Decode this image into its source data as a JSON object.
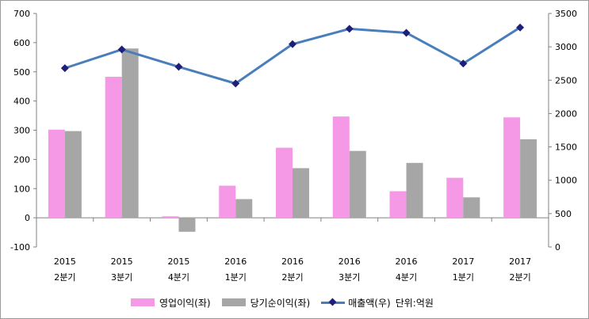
{
  "chart_data": {
    "type": "bar",
    "categories": [
      {
        "year": "2015",
        "quarter": "2분기"
      },
      {
        "year": "2015",
        "quarter": "3분기"
      },
      {
        "year": "2015",
        "quarter": "4분기"
      },
      {
        "year": "2016",
        "quarter": "1분기"
      },
      {
        "year": "2016",
        "quarter": "2분기"
      },
      {
        "year": "2016",
        "quarter": "3분기"
      },
      {
        "year": "2016",
        "quarter": "4분기"
      },
      {
        "year": "2017",
        "quarter": "1분기"
      },
      {
        "year": "2017",
        "quarter": "2분기"
      }
    ],
    "series": [
      {
        "name": "영업이익(좌)",
        "type": "bar",
        "axis": "left",
        "color": "#f598e6",
        "values": [
          302,
          483,
          5,
          110,
          240,
          347,
          91,
          137,
          344
        ]
      },
      {
        "name": "당기순이익(좌)",
        "type": "bar",
        "axis": "left",
        "color": "#a6a6a6",
        "values": [
          297,
          580,
          -48,
          64,
          170,
          229,
          188,
          70,
          269
        ]
      },
      {
        "name": "매출액(우)",
        "type": "line",
        "axis": "right",
        "color": "#4a7ebb",
        "marker_color": "#1f1f7a",
        "values": [
          2680,
          2960,
          2700,
          2450,
          3040,
          3270,
          3210,
          2750,
          3290
        ]
      }
    ],
    "y_left": {
      "min": -100,
      "max": 700,
      "step": 100,
      "ticks": [
        "-100",
        "0",
        "100",
        "200",
        "300",
        "400",
        "500",
        "600",
        "700"
      ]
    },
    "y_right": {
      "min": 0,
      "max": 3500,
      "step": 500,
      "ticks": [
        "0",
        "500",
        "1000",
        "1500",
        "2000",
        "2500",
        "3000",
        "3500"
      ]
    },
    "unit_note": "단위:억원",
    "legend_position": "bottom",
    "grid": false
  }
}
